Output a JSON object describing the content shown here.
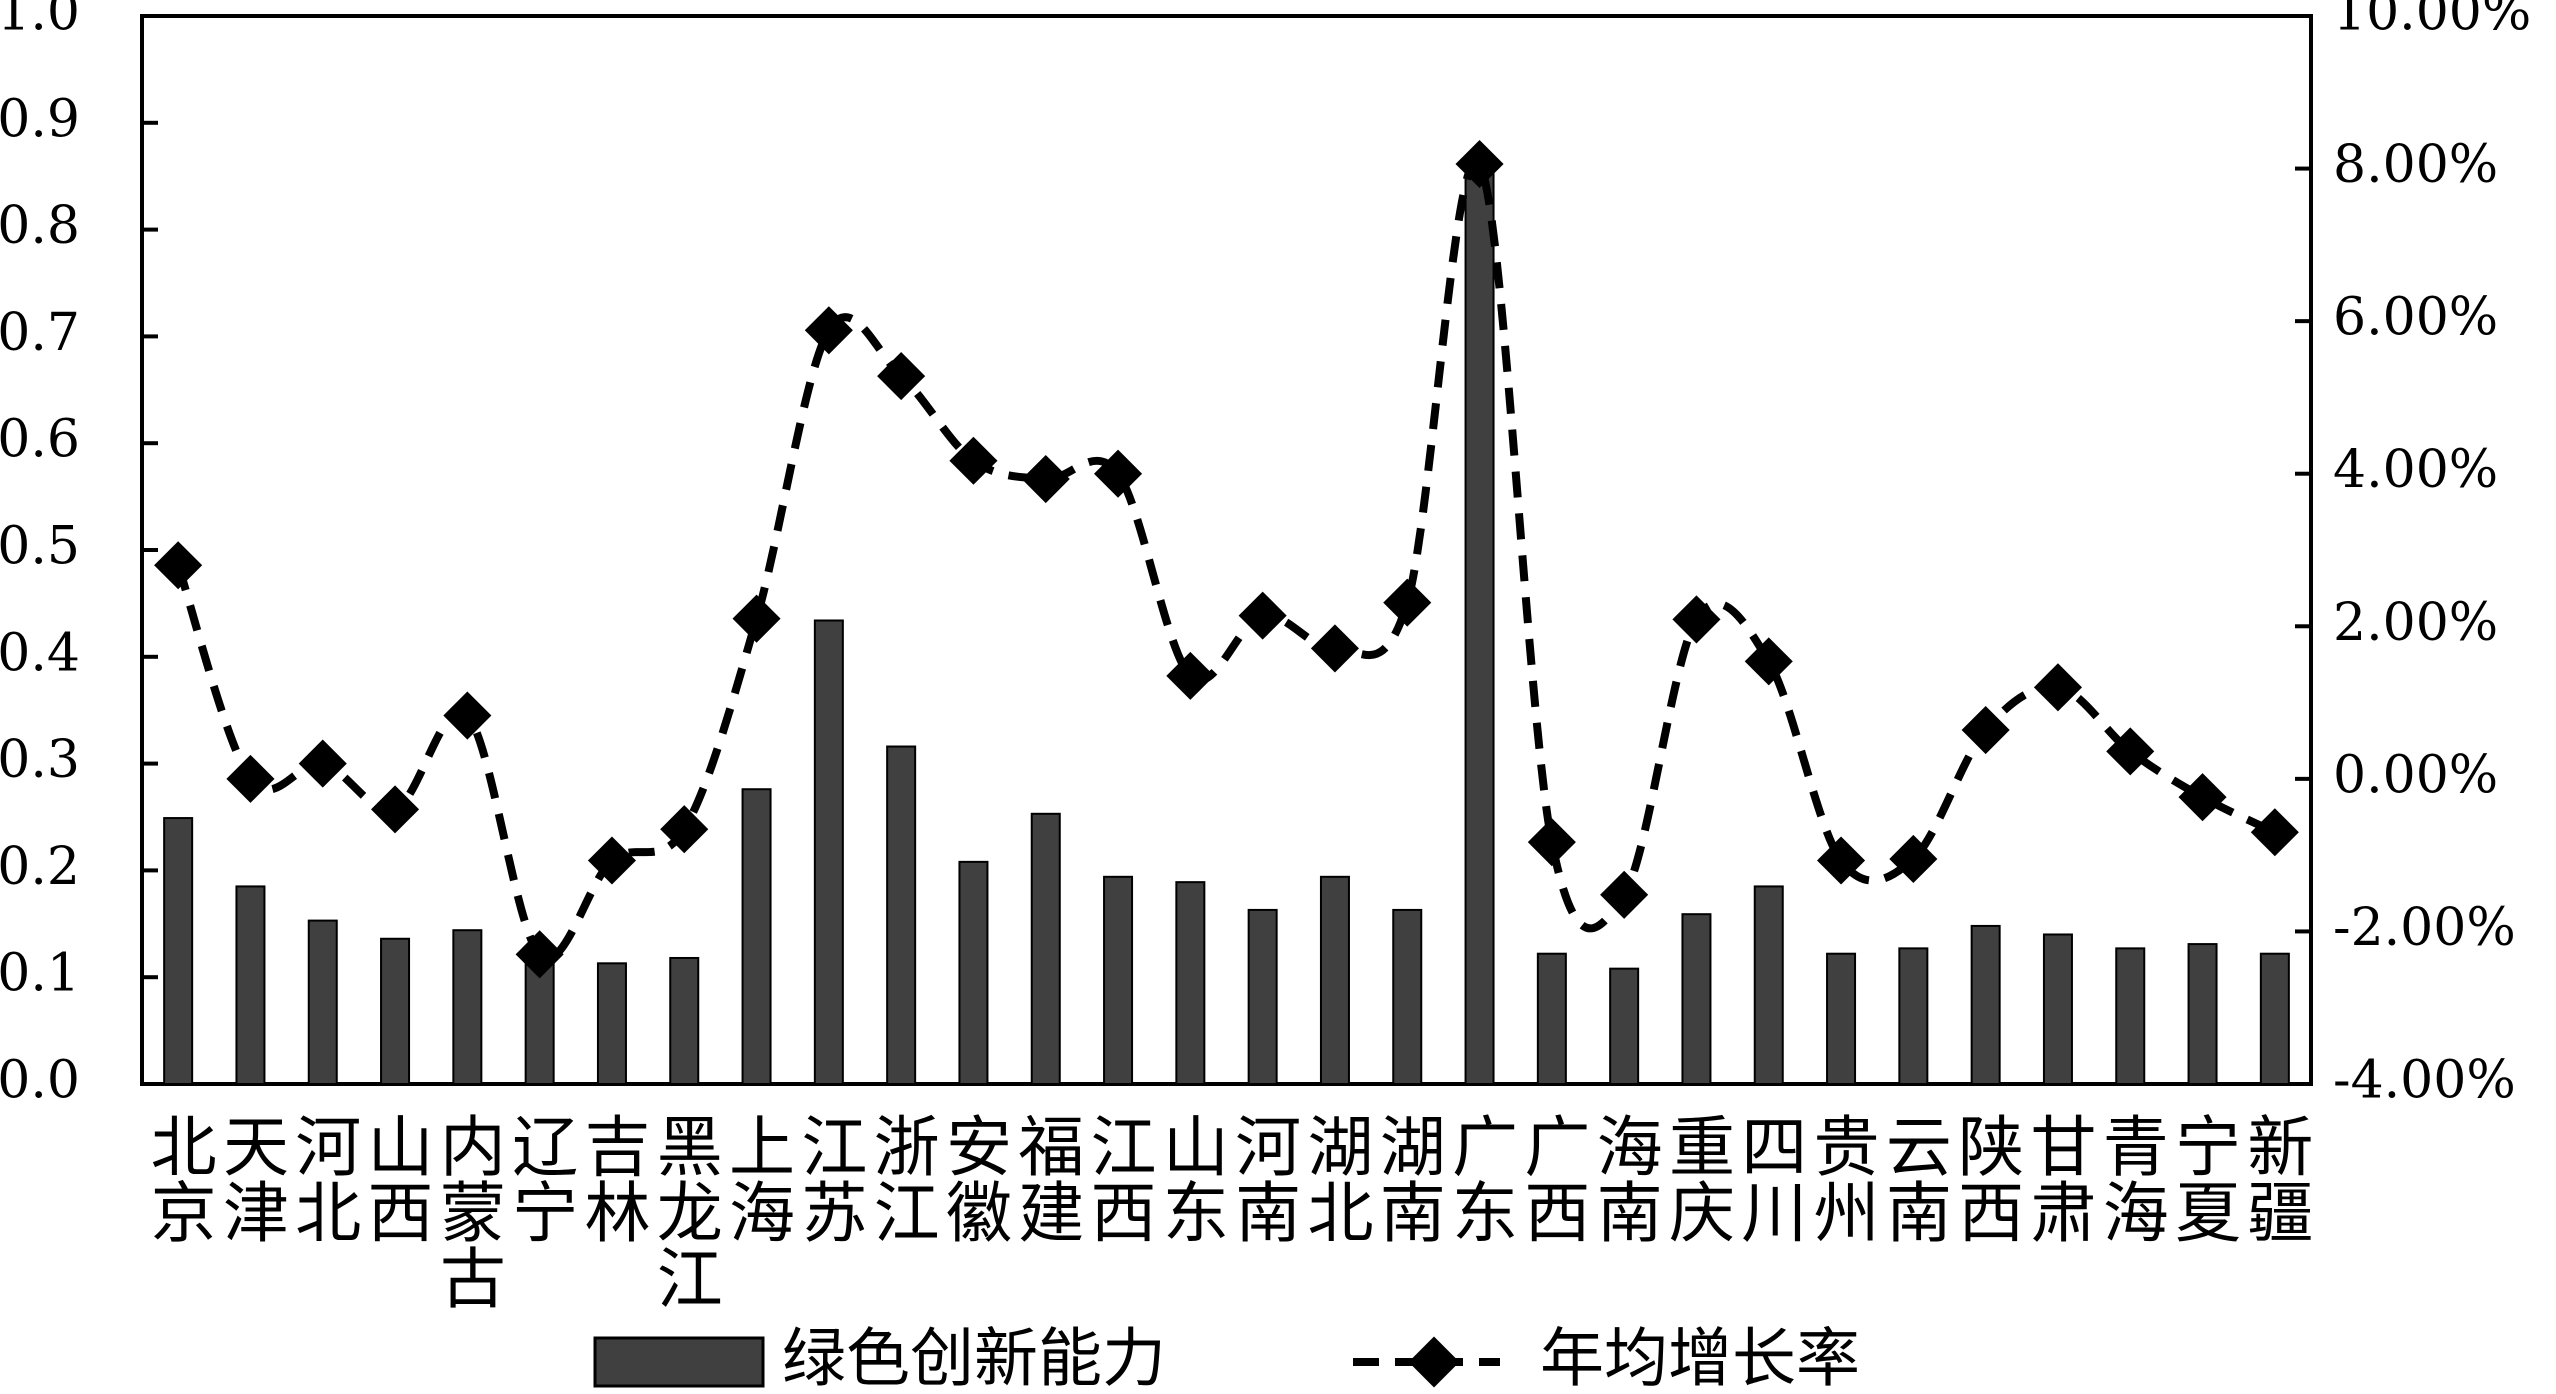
{
  "chart_data": {
    "type": "bar-line",
    "categories": [
      "北京",
      "天津",
      "河北",
      "山西",
      "内蒙古",
      "辽宁",
      "吉林",
      "黑龙江",
      "上海",
      "江苏",
      "浙江",
      "安徽",
      "福建",
      "江西",
      "山东",
      "河南",
      "湖北",
      "湖南",
      "广东",
      "广西",
      "海南",
      "重庆",
      "四川",
      "贵州",
      "云南",
      "陕西",
      "甘肃",
      "青海",
      "宁夏",
      "新疆"
    ],
    "series": [
      {
        "name": "绿色创新能力",
        "type": "bar",
        "color": "#404040",
        "values": [
          0.249,
          0.185,
          0.153,
          0.136,
          0.144,
          0.12,
          0.113,
          0.118,
          0.276,
          0.434,
          0.316,
          0.208,
          0.253,
          0.194,
          0.189,
          0.163,
          0.194,
          0.163,
          0.855,
          0.122,
          0.108,
          0.159,
          0.185,
          0.122,
          0.127,
          0.148,
          0.14,
          0.127,
          0.131,
          0.122
        ]
      },
      {
        "name": "年均增长率",
        "type": "line",
        "axis": "y2",
        "color": "#000000",
        "values": [
          2.8,
          0.0,
          0.2,
          -0.4,
          0.83,
          -2.3,
          -1.07,
          -0.66,
          2.1,
          5.88,
          5.28,
          4.17,
          3.93,
          4.0,
          1.35,
          2.14,
          1.71,
          2.31,
          8.06,
          -0.83,
          -1.52,
          2.09,
          1.54,
          -1.07,
          -1.05,
          0.64,
          1.2,
          0.36,
          -0.24,
          -0.7
        ]
      }
    ],
    "ylim": [
      0,
      1
    ],
    "yticks": [
      {
        "value": 0,
        "label": "0.0"
      },
      {
        "value": 0.1,
        "label": "0.1"
      },
      {
        "value": 0.2,
        "label": "0.2"
      },
      {
        "value": 0.3,
        "label": "0.3"
      },
      {
        "value": 0.4,
        "label": "0.4"
      },
      {
        "value": 0.5,
        "label": "0.5"
      },
      {
        "value": 0.6,
        "label": "0.6"
      },
      {
        "value": 0.7,
        "label": "0.7"
      },
      {
        "value": 0.8,
        "label": "0.8"
      },
      {
        "value": 0.9,
        "label": "0.9"
      },
      {
        "value": 1,
        "label": "1.0"
      }
    ],
    "y2lim": [
      -4,
      10
    ],
    "y2ticks": [
      {
        "value": -4,
        "label": "-4.00%"
      },
      {
        "value": -2,
        "label": "-2.00%"
      },
      {
        "value": 0,
        "label": "0.00%"
      },
      {
        "value": 2,
        "label": "2.00%"
      },
      {
        "value": 4,
        "label": "4.00%"
      },
      {
        "value": 6,
        "label": "6.00%"
      },
      {
        "value": 8,
        "label": "8.00%"
      },
      {
        "value": 10,
        "label": "10.00%"
      }
    ],
    "legend": "bottom",
    "grid": false
  }
}
